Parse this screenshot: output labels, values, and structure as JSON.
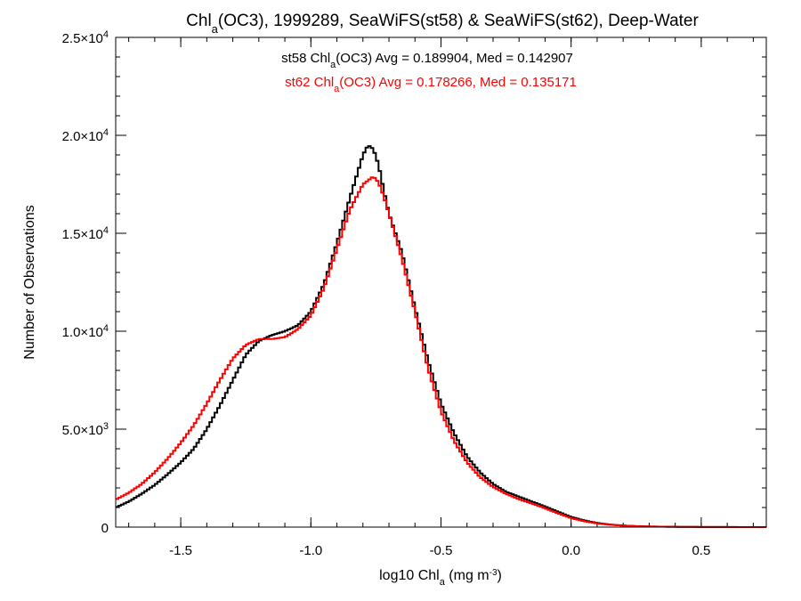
{
  "chart_data": {
    "type": "line",
    "title": {
      "pre": "Chl",
      "sub": "a",
      "post": "(OC3), 1999289, SeaWiFS(st58) & SeaWiFS(st62), Deep-Water"
    },
    "xlabel": {
      "pre": "log10 Chl",
      "sub": "a",
      "mid": " (mg m",
      "sup": "-3",
      "post": ")"
    },
    "ylabel": "Number of Observations",
    "xlim": [
      -1.75,
      0.75
    ],
    "ylim": [
      0,
      25000
    ],
    "x_ticks": [
      {
        "value": -1.5,
        "label": "-1.5"
      },
      {
        "value": -1.0,
        "label": "-1.0"
      },
      {
        "value": -0.5,
        "label": "-0.5"
      },
      {
        "value": 0.0,
        "label": "0.0"
      },
      {
        "value": 0.5,
        "label": "0.5"
      }
    ],
    "x_minor_step": 0.1,
    "y_ticks": [
      {
        "value": 0,
        "label": "0",
        "exp": ""
      },
      {
        "value": 5000,
        "label": "5.0×10",
        "exp": "3"
      },
      {
        "value": 10000,
        "label": "1.0×10",
        "exp": "4"
      },
      {
        "value": 15000,
        "label": "1.5×10",
        "exp": "4"
      },
      {
        "value": 20000,
        "label": "2.0×10",
        "exp": "4"
      },
      {
        "value": 25000,
        "label": "2.5×10",
        "exp": "4"
      }
    ],
    "y_minor_step": 1000,
    "grid": false,
    "legend_position": "top-center",
    "series": [
      {
        "name": "st58",
        "color": "#000000",
        "legend": {
          "pre": "st58 Chl",
          "sub": "a",
          "post": "(OC3) Avg = 0.189904, Med = 0.142907"
        },
        "x": [
          -1.75,
          -1.7,
          -1.65,
          -1.6,
          -1.55,
          -1.5,
          -1.45,
          -1.4,
          -1.35,
          -1.3,
          -1.25,
          -1.2,
          -1.15,
          -1.1,
          -1.05,
          -1.0,
          -0.95,
          -0.9,
          -0.85,
          -0.8,
          -0.78,
          -0.76,
          -0.74,
          -0.72,
          -0.7,
          -0.65,
          -0.6,
          -0.55,
          -0.5,
          -0.45,
          -0.4,
          -0.35,
          -0.3,
          -0.25,
          -0.2,
          -0.15,
          -0.1,
          -0.05,
          0.0,
          0.05,
          0.1,
          0.15,
          0.2,
          0.25,
          0.3,
          0.4,
          0.5,
          0.6,
          0.75
        ],
        "y": [
          1000,
          1300,
          1700,
          2150,
          2700,
          3300,
          4000,
          5000,
          6200,
          7500,
          8800,
          9500,
          9800,
          10000,
          10300,
          11000,
          12400,
          14500,
          16800,
          19000,
          19500,
          19300,
          18500,
          17200,
          16000,
          14000,
          11200,
          8500,
          6300,
          4800,
          3600,
          2800,
          2200,
          1800,
          1550,
          1300,
          1050,
          780,
          520,
          340,
          210,
          130,
          80,
          50,
          30,
          15,
          8,
          4,
          0
        ]
      },
      {
        "name": "st62",
        "color": "#ff0000",
        "legend": {
          "pre": "st62 Chl",
          "sub": "a",
          "post": "(OC3) Avg = 0.178266, Med = 0.135171"
        },
        "x": [
          -1.75,
          -1.7,
          -1.65,
          -1.6,
          -1.55,
          -1.5,
          -1.45,
          -1.4,
          -1.35,
          -1.3,
          -1.25,
          -1.2,
          -1.15,
          -1.1,
          -1.05,
          -1.0,
          -0.95,
          -0.9,
          -0.85,
          -0.8,
          -0.78,
          -0.76,
          -0.74,
          -0.72,
          -0.7,
          -0.65,
          -0.6,
          -0.55,
          -0.5,
          -0.45,
          -0.4,
          -0.35,
          -0.3,
          -0.25,
          -0.2,
          -0.15,
          -0.1,
          -0.05,
          0.0,
          0.05,
          0.1,
          0.15,
          0.2,
          0.25,
          0.3,
          0.4,
          0.5,
          0.6,
          0.75
        ],
        "y": [
          1400,
          1750,
          2200,
          2800,
          3500,
          4300,
          5200,
          6300,
          7500,
          8600,
          9300,
          9600,
          9600,
          9700,
          10100,
          10800,
          12200,
          14200,
          16200,
          17500,
          17700,
          17900,
          17600,
          16900,
          16000,
          13700,
          11000,
          8100,
          5900,
          4400,
          3300,
          2550,
          2050,
          1700,
          1420,
          1200,
          960,
          700,
          460,
          300,
          190,
          120,
          75,
          45,
          28,
          14,
          7,
          3,
          0
        ]
      }
    ]
  }
}
